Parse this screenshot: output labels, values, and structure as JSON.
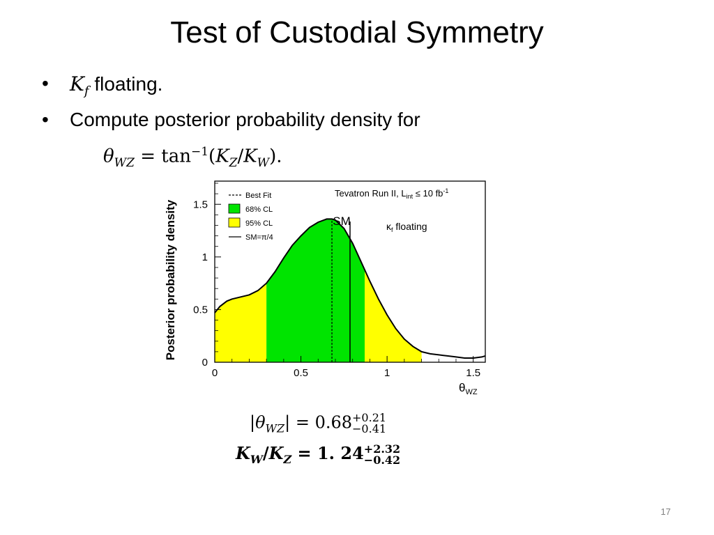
{
  "slide": {
    "title": "Test of Custodial Symmetry",
    "page_number": "17"
  },
  "bullets": [
    {
      "symbol": "K",
      "subscript": "f",
      "text": " floating."
    },
    {
      "text": "Compute posterior probability density for"
    }
  ],
  "equation_theta": {
    "lhs": "θ",
    "lhs_sub": "WZ",
    "eq": " = ",
    "func": "tan",
    "func_sup": "−1",
    "open": "(",
    "k1": "K",
    "k1_sub": "Z",
    "slash": "/",
    "k2": "K",
    "k2_sub": "W",
    "close": ").",
    "close_dot": ""
  },
  "result1": {
    "lhs": "|θ",
    "lhs_sub": "WZ",
    "lhs_end": "|",
    "eq": " = ",
    "value": "0.68",
    "err_up": "+0.21",
    "err_down": "−0.41"
  },
  "result2": {
    "k1": "K",
    "k1_sub": "W",
    "slash": "/",
    "k2": "K",
    "k2_sub": "Z",
    "eq": " = ",
    "value": "1. 24",
    "err_up": "+2.32",
    "err_down": "−0.42"
  },
  "chart_data": {
    "type": "area",
    "ylabel": "Posterior probability density",
    "xlabel": "θ",
    "xlabel_sub": "WZ",
    "xlim": [
      0,
      1.57
    ],
    "ylim": [
      0,
      1.72
    ],
    "x_ticks": [
      0,
      0.5,
      1,
      1.5
    ],
    "x_tick_labels": [
      "0",
      "0.5",
      "1",
      "1.5"
    ],
    "y_ticks": [
      0,
      0.5,
      1,
      1.5
    ],
    "y_tick_labels": [
      "0",
      "0.5",
      "1",
      "1.5"
    ],
    "curve": {
      "x": [
        0,
        0.03,
        0.07,
        0.1,
        0.15,
        0.2,
        0.25,
        0.3,
        0.35,
        0.4,
        0.45,
        0.5,
        0.55,
        0.6,
        0.65,
        0.68,
        0.7,
        0.75,
        0.8,
        0.85,
        0.9,
        0.95,
        1.0,
        1.05,
        1.1,
        1.15,
        1.2,
        1.25,
        1.3,
        1.35,
        1.4,
        1.45,
        1.5,
        1.55,
        1.57
      ],
      "y": [
        0.47,
        0.53,
        0.58,
        0.6,
        0.62,
        0.64,
        0.68,
        0.75,
        0.86,
        0.99,
        1.11,
        1.2,
        1.28,
        1.33,
        1.36,
        1.36,
        1.35,
        1.27,
        1.13,
        0.95,
        0.77,
        0.6,
        0.45,
        0.32,
        0.22,
        0.15,
        0.1,
        0.08,
        0.07,
        0.06,
        0.05,
        0.04,
        0.04,
        0.05,
        0.06
      ]
    },
    "bands": [
      {
        "name": "95% CL",
        "color": "#ffff00",
        "ranges": [
          [
            0,
            0.3
          ],
          [
            0.87,
            1.2
          ]
        ]
      },
      {
        "name": "68% CL",
        "color": "#00e400",
        "ranges": [
          [
            0.3,
            0.87
          ]
        ]
      }
    ],
    "best_fit": 0.68,
    "sm_value": 0.785,
    "sm_label": "SM",
    "legend": {
      "placement": "top-left",
      "entries": [
        {
          "label": "Best Fit",
          "style": "dashed"
        },
        {
          "label": "68% CL",
          "style": "fill",
          "color": "#00e400"
        },
        {
          "label": "95% CL",
          "style": "fill",
          "color": "#ffff00"
        },
        {
          "label": "SM=π/4",
          "style": "solid"
        }
      ]
    },
    "annotations": {
      "header_part1": "Tevatron Run II, L",
      "header_sub": "int",
      "header_part2": " ≤ 10 fb",
      "header_sup": "-1",
      "kappa": "κ",
      "kappa_sub": "f",
      "kappa_text": " floating"
    }
  }
}
